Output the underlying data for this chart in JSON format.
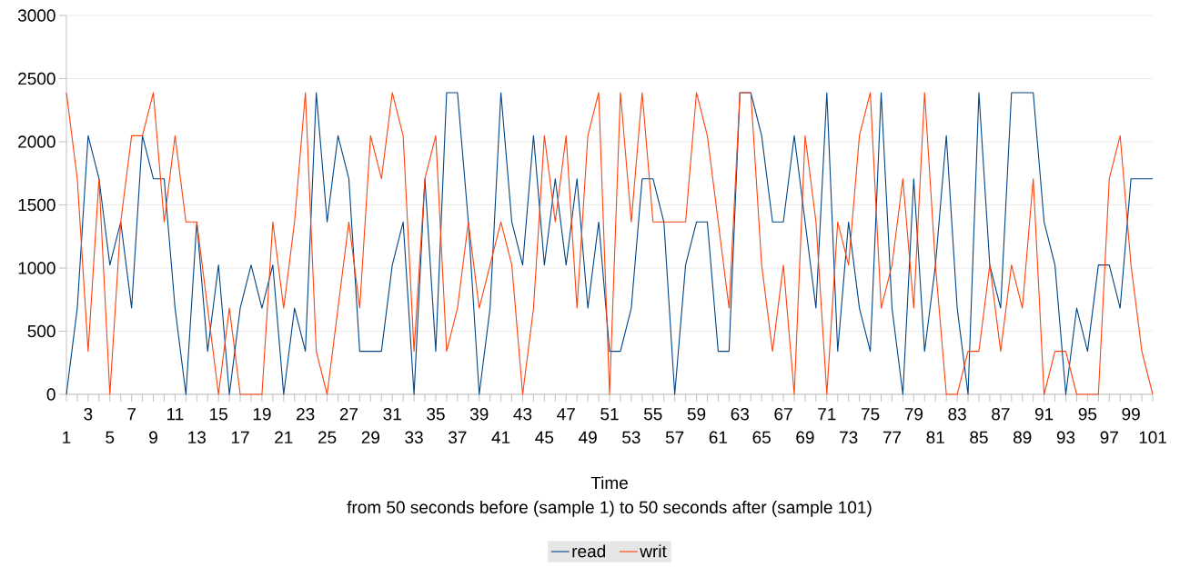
{
  "chart_data": {
    "type": "line",
    "xlabel": "Time",
    "annotations": [
      "from 50 seconds before (sample 1) to 50 seconds after (sample 101)"
    ],
    "categories": [
      "1",
      null,
      "3",
      null,
      "5",
      null,
      "7",
      null,
      "9",
      null,
      "11",
      null,
      "13",
      null,
      "15",
      null,
      "17",
      null,
      "19",
      null,
      "21",
      null,
      "23",
      null,
      "25",
      null,
      "27",
      null,
      "29",
      null,
      "31",
      null,
      "33",
      null,
      "35",
      null,
      "37",
      null,
      "39",
      null,
      "41",
      null,
      "43",
      null,
      "45",
      null,
      "47",
      null,
      "49",
      null,
      "51",
      null,
      "53",
      null,
      "55",
      null,
      "57",
      null,
      "59",
      null,
      "61",
      null,
      "63",
      null,
      "65",
      null,
      "67",
      null,
      "69",
      null,
      "71",
      null,
      "73",
      null,
      "75",
      null,
      "77",
      null,
      "79",
      null,
      "81",
      null,
      "83",
      null,
      "85",
      null,
      "87",
      null,
      "89",
      null,
      "91",
      null,
      "93",
      null,
      "95",
      null,
      "97",
      null,
      "99",
      null,
      "101"
    ],
    "series": [
      {
        "name": "read",
        "color": "#004586",
        "values": [
          0,
          683,
          2048,
          1707,
          1024,
          1365,
          683,
          2048,
          1707,
          1707,
          683,
          0,
          1365,
          341,
          1024,
          0,
          683,
          1024,
          683,
          1024,
          0,
          683,
          341,
          2389,
          1365,
          2048,
          1707,
          341,
          341,
          341,
          1024,
          1365,
          0,
          1707,
          341,
          2389,
          2389,
          1365,
          0,
          683,
          2389,
          1365,
          1024,
          2048,
          1024,
          1707,
          1024,
          1707,
          683,
          1365,
          341,
          341,
          683,
          1707,
          1707,
          1365,
          0,
          1024,
          1365,
          1365,
          341,
          341,
          2389,
          2389,
          2048,
          1365,
          1365,
          2048,
          1365,
          683,
          2389,
          341,
          1365,
          683,
          341,
          2389,
          683,
          0,
          1707,
          341,
          1024,
          2048,
          683,
          0,
          2389,
          1024,
          683,
          2389,
          2389,
          2389,
          1365,
          1024,
          0,
          683,
          341,
          1024,
          1024,
          683,
          1707,
          1707,
          1707
        ]
      },
      {
        "name": "writ",
        "color": "#ff420e",
        "values": [
          2389,
          1707,
          341,
          1707,
          0,
          1365,
          2048,
          2048,
          2389,
          1365,
          2048,
          1365,
          1365,
          683,
          0,
          683,
          0,
          0,
          0,
          1365,
          683,
          1365,
          2389,
          341,
          0,
          683,
          1365,
          683,
          2048,
          1707,
          2389,
          2048,
          341,
          1707,
          2048,
          341,
          683,
          1365,
          683,
          1024,
          1365,
          1024,
          0,
          683,
          2048,
          1365,
          2048,
          683,
          2048,
          2389,
          0,
          2389,
          1365,
          2389,
          1365,
          1365,
          1365,
          1365,
          2389,
          2048,
          1365,
          683,
          2389,
          2389,
          1024,
          341,
          1024,
          0,
          2048,
          1365,
          0,
          1365,
          1024,
          2048,
          2389,
          683,
          1024,
          1707,
          683,
          2389,
          1024,
          0,
          0,
          341,
          341,
          1024,
          341,
          1024,
          683,
          1707,
          0,
          341,
          341,
          0,
          0,
          0,
          1707,
          2048,
          1024,
          341,
          0
        ]
      }
    ],
    "ylim": [
      0,
      3000
    ],
    "yticks": [
      0,
      500,
      1000,
      1500,
      2000,
      2500,
      3000
    ],
    "grid": "y",
    "legend": "bottom"
  }
}
